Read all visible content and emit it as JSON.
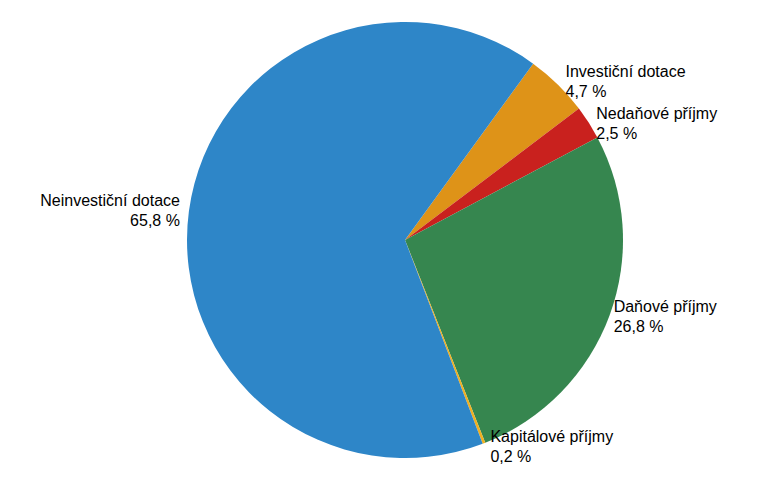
{
  "chart_data": {
    "type": "pie",
    "categories": [
      "Investiční dotace",
      "Nedaňové příjmy",
      "Daňové příjmy",
      "Kapitálové příjmy",
      "Neinvestiční dotace"
    ],
    "values": [
      4.7,
      2.5,
      26.8,
      0.2,
      65.8
    ],
    "value_labels": [
      "4,7 %",
      "2,5 %",
      "26,8 %",
      "0,2 %",
      "65,8 %"
    ],
    "colors": [
      "#de9318",
      "#c9211e",
      "#36864f",
      "#f0b020",
      "#2e86c8"
    ],
    "data_labels": true
  }
}
